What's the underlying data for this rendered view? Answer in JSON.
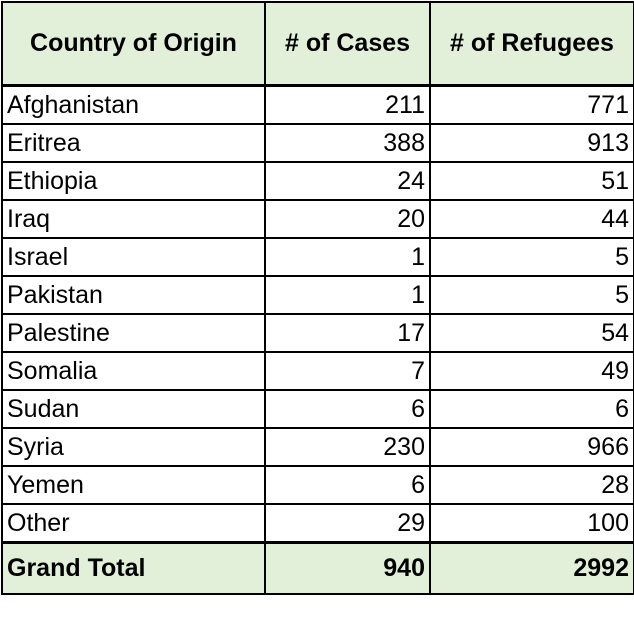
{
  "table": {
    "headers": [
      "Country of Origin",
      "# of Cases",
      "# of Refugees"
    ],
    "rows": [
      {
        "country": "Afghanistan",
        "cases": "211",
        "refugees": "771"
      },
      {
        "country": "Eritrea",
        "cases": "388",
        "refugees": "913"
      },
      {
        "country": "Ethiopia",
        "cases": "24",
        "refugees": "51"
      },
      {
        "country": "Iraq",
        "cases": "20",
        "refugees": "44"
      },
      {
        "country": "Israel",
        "cases": "1",
        "refugees": "5"
      },
      {
        "country": "Pakistan",
        "cases": "1",
        "refugees": "5"
      },
      {
        "country": "Palestine",
        "cases": "17",
        "refugees": "54"
      },
      {
        "country": "Somalia",
        "cases": "7",
        "refugees": "49"
      },
      {
        "country": "Sudan",
        "cases": "6",
        "refugees": "6"
      },
      {
        "country": "Syria",
        "cases": "230",
        "refugees": "966"
      },
      {
        "country": "Yemen",
        "cases": "6",
        "refugees": "28"
      },
      {
        "country": "Other",
        "cases": "29",
        "refugees": "100"
      }
    ],
    "total": {
      "label": "Grand Total",
      "cases": "940",
      "refugees": "2992"
    }
  },
  "colors": {
    "header_fill": "#e2efd9",
    "border": "#000000"
  }
}
